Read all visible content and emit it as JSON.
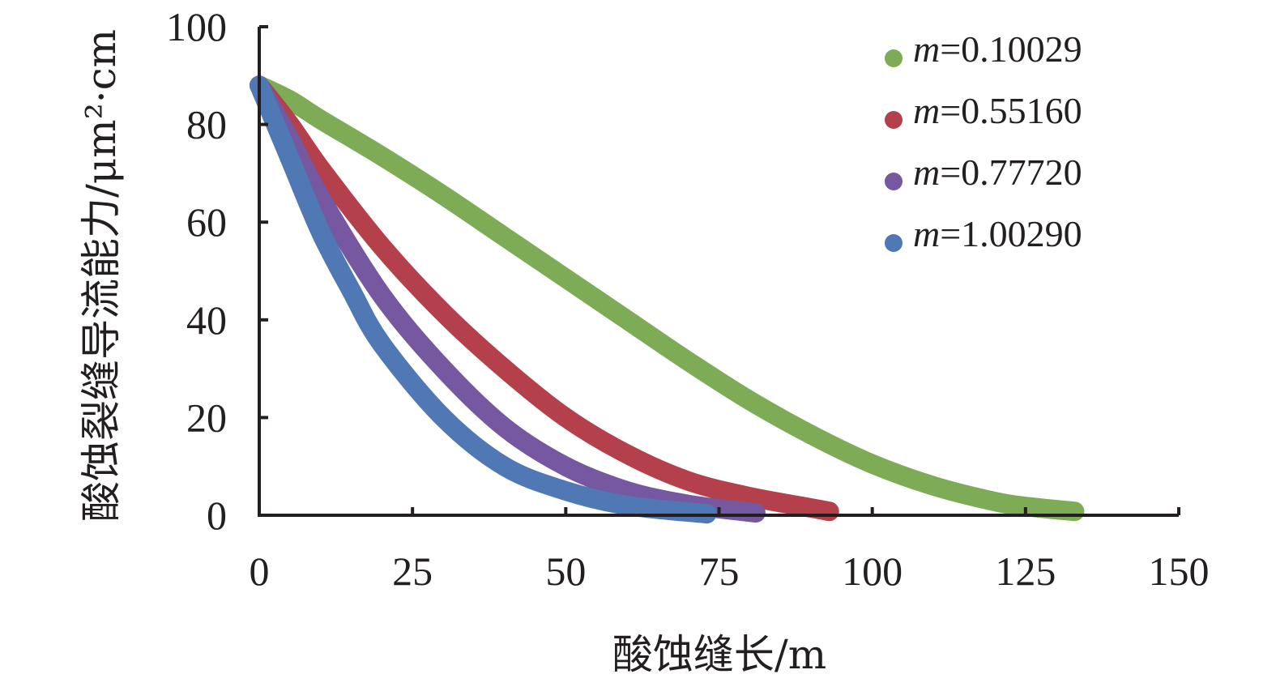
{
  "chart_data": {
    "type": "scatter",
    "title": "",
    "xlabel": "酸蚀缝长/m",
    "ylabel": "酸蚀裂缝导流能力/μm²·cm",
    "xlim": [
      0,
      150
    ],
    "ylim": [
      0,
      100
    ],
    "x_ticks": [
      "0",
      "25",
      "50",
      "75",
      "100",
      "125",
      "150"
    ],
    "y_ticks": [
      "0",
      "20",
      "40",
      "60",
      "80",
      "100"
    ],
    "legend_position": "top-right",
    "grid": false,
    "series": [
      {
        "name": "m=0.10029",
        "legend_var": "m",
        "legend_value": "=0.10029",
        "color": "#7eab55",
        "points": [
          [
            0,
            88
          ],
          [
            5,
            85
          ],
          [
            10,
            81
          ],
          [
            20,
            73.5
          ],
          [
            30,
            65.5
          ],
          [
            40,
            57
          ],
          [
            50,
            48.5
          ],
          [
            60,
            40
          ],
          [
            70,
            31.5
          ],
          [
            80,
            23.5
          ],
          [
            90,
            16.5
          ],
          [
            100,
            10.5
          ],
          [
            110,
            6
          ],
          [
            120,
            2.8
          ],
          [
            125,
            1.8
          ],
          [
            133,
            0.8
          ]
        ]
      },
      {
        "name": "m=0.55160",
        "legend_var": "m",
        "legend_value": "=0.55160",
        "color": "#b3404a",
        "points": [
          [
            0,
            88
          ],
          [
            5,
            80
          ],
          [
            10,
            71
          ],
          [
            20,
            55
          ],
          [
            30,
            41.5
          ],
          [
            40,
            30
          ],
          [
            50,
            20
          ],
          [
            60,
            12.5
          ],
          [
            70,
            7
          ],
          [
            80,
            3.8
          ],
          [
            90,
            1.5
          ],
          [
            93,
            0.8
          ]
        ]
      },
      {
        "name": "m=0.77720",
        "legend_var": "m",
        "legend_value": "=0.77720",
        "color": "#7558a0",
        "points": [
          [
            0,
            88
          ],
          [
            5,
            77
          ],
          [
            10,
            65
          ],
          [
            20,
            45
          ],
          [
            30,
            30
          ],
          [
            40,
            18
          ],
          [
            50,
            10
          ],
          [
            60,
            5
          ],
          [
            70,
            2.2
          ],
          [
            81,
            0.5
          ]
        ]
      },
      {
        "name": "m=1.00290",
        "legend_var": "m",
        "legend_value": "=1.00290",
        "color": "#4f78b4",
        "points": [
          [
            0,
            88
          ],
          [
            5,
            73
          ],
          [
            10,
            58
          ],
          [
            15,
            46
          ],
          [
            20,
            35
          ],
          [
            30,
            20
          ],
          [
            40,
            10
          ],
          [
            50,
            5
          ],
          [
            60,
            2
          ],
          [
            73,
            0.3
          ]
        ]
      }
    ]
  }
}
